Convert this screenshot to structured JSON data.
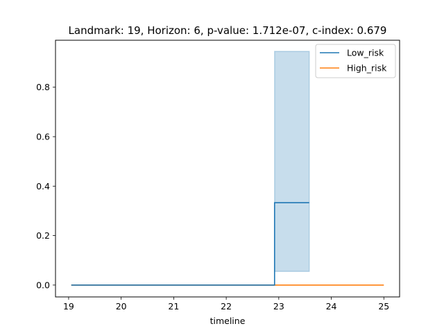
{
  "chart_data": {
    "type": "line",
    "title": "Landmark: 19, Horizon: 6, p-value: 1.712e-07, c-index: 0.679",
    "xlabel": "timeline",
    "ylabel": "",
    "xlim": [
      18.75,
      25.3
    ],
    "ylim": [
      -0.048,
      0.99
    ],
    "x_ticks": [
      "19",
      "20",
      "21",
      "22",
      "23",
      "24",
      "25"
    ],
    "y_ticks": [
      "0.0",
      "0.2",
      "0.4",
      "0.6",
      "0.8"
    ],
    "grid": false,
    "legend_position": "top-right",
    "series": [
      {
        "name": "Low_risk",
        "color": "#1f77b4",
        "step": "post",
        "x": [
          19.05,
          22.92,
          23.58
        ],
        "y": [
          0.0,
          0.333,
          0.333
        ],
        "ci": {
          "x": [
            22.92,
            23.58
          ],
          "lower": [
            0.055,
            0.055
          ],
          "upper": [
            0.945,
            0.945
          ],
          "color": "#1f77b4",
          "alpha": 0.25
        }
      },
      {
        "name": "High_risk",
        "color": "#ff7f0e",
        "step": "post",
        "x": [
          19.05,
          25.0
        ],
        "y": [
          0.0,
          0.0
        ]
      }
    ]
  }
}
